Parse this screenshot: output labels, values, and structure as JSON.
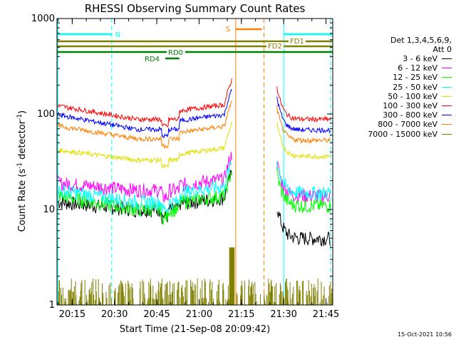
{
  "chart_data": {
    "type": "line",
    "title": "RHESSI Observing Summary Count Rates",
    "xlabel": "Start Time (21-Sep-08 20:09:42)",
    "ylabel_main": "Count Rate (s",
    "ylabel_sup1": "-1",
    "ylabel_mid": " detector",
    "ylabel_sup2": "-1",
    "ylabel_end": ")",
    "yscale": "log",
    "ylim": [
      1,
      1000
    ],
    "xlim_minutes": [
      20.16,
      21.79
    ],
    "x_ticks": [
      "20:15",
      "20:30",
      "20:45",
      "21:00",
      "21:15",
      "21:30",
      "21:45"
    ],
    "y_ticks": [
      "1",
      "10",
      "100",
      "1000"
    ],
    "timestamp": "15-Oct-2021 10:56",
    "legend_header": [
      "Det 1,3,4,5,6,9,",
      "Att 0"
    ],
    "series": [
      {
        "name": "3 - 6 keV",
        "color": "#000000",
        "start": 12,
        "mid": 10,
        "jump": 11.5,
        "end": 5
      },
      {
        "name": "6 - 12 keV",
        "color": "#ff00ff",
        "start": 19,
        "mid": 16,
        "jump": 18,
        "end": 14
      },
      {
        "name": "12 - 25 keV",
        "color": "#00ff00",
        "start": 14,
        "mid": 10,
        "jump": 12,
        "end": 11
      },
      {
        "name": "25 - 50 keV",
        "color": "#00ffff",
        "start": 16,
        "mid": 12,
        "jump": 15,
        "end": 15
      },
      {
        "name": "50 - 100 keV",
        "color": "#e0e000",
        "start": 42,
        "mid": 33,
        "jump": 38,
        "end": 36
      },
      {
        "name": "100 - 300 keV",
        "color": "#ff0000",
        "start": 122,
        "mid": 88,
        "jump": 108,
        "end": 88
      },
      {
        "name": "300 - 800 keV",
        "color": "#0000ff",
        "start": 98,
        "mid": 69,
        "jump": 85,
        "end": 68
      },
      {
        "name": "800 - 7000 keV",
        "color": "#ff8000",
        "start": 75,
        "mid": 55,
        "jump": 64,
        "end": 53
      },
      {
        "name": "7000 - 15000 keV",
        "color": "#808000",
        "start": 1.6,
        "mid": 1.4,
        "jump": 1.5,
        "end": 1.5
      }
    ],
    "annotations": {
      "N": {
        "label": "N",
        "color": "#00ffff"
      },
      "S": {
        "label": "S",
        "color": "#ff8000"
      },
      "FD1": {
        "label": "FD1",
        "color": "#808000"
      },
      "FD2": {
        "label": "FD2",
        "color": "#808000"
      },
      "RD0": {
        "label": "RD0",
        "color": "#008000"
      },
      "RD4": {
        "label": "RD4",
        "color": "#008000"
      }
    }
  }
}
